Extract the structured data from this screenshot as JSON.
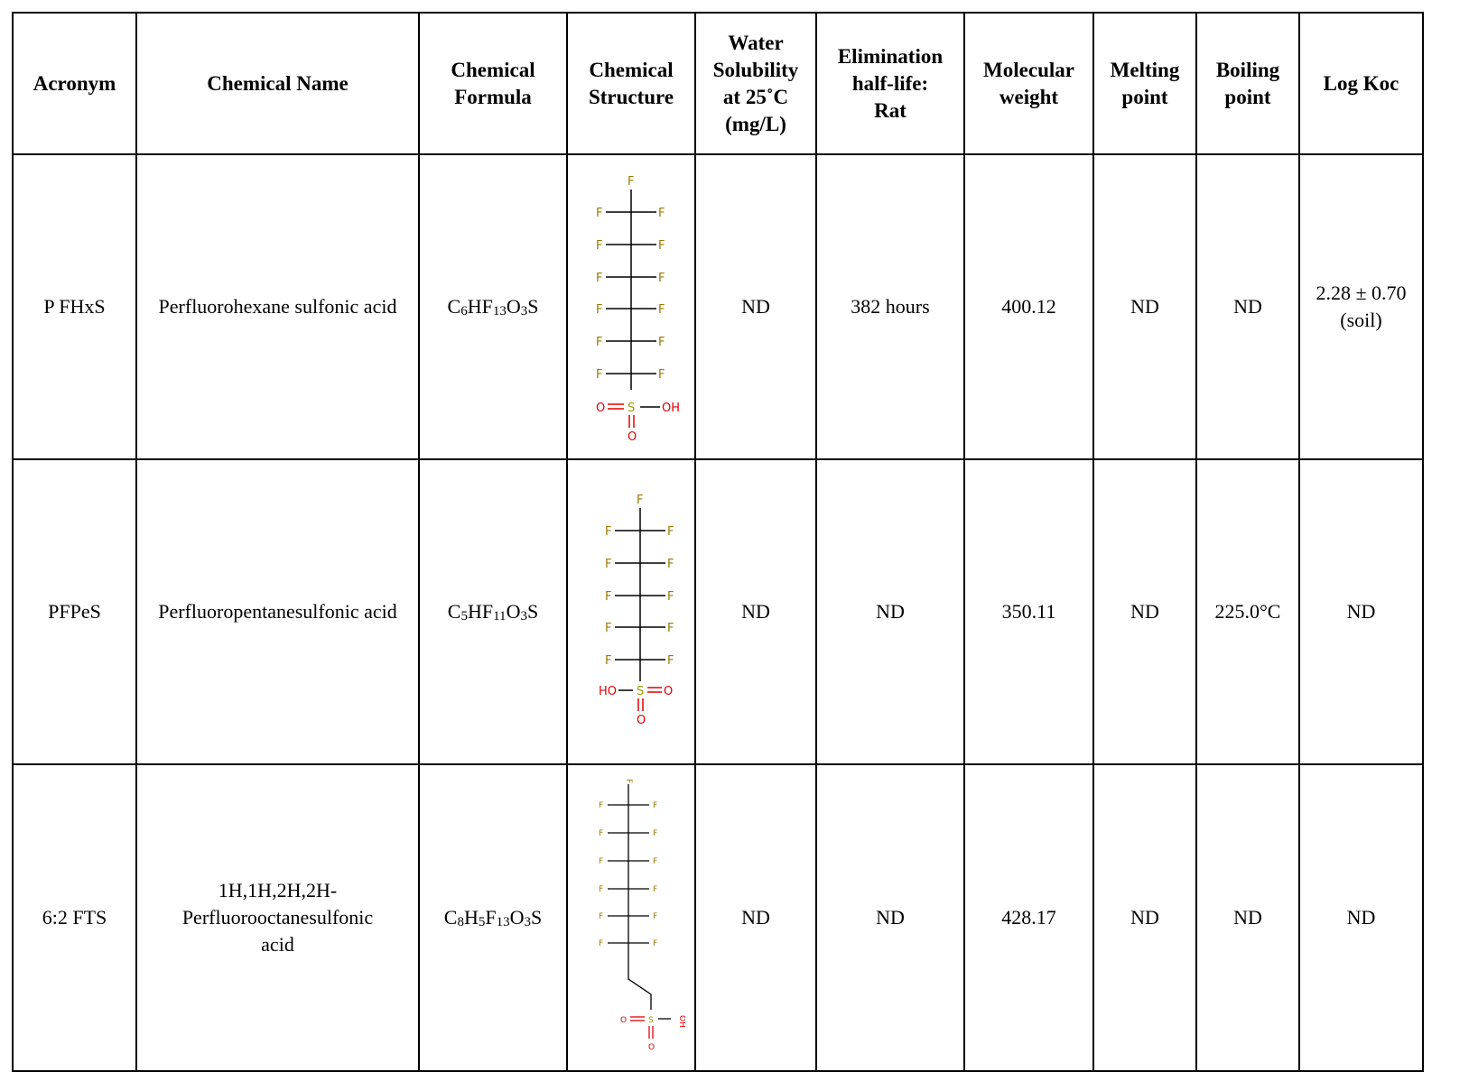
{
  "headers": {
    "acronym": "Acronym",
    "chemical_name": "Chemical Name",
    "formula_l1": "Chemical",
    "formula_l2": "Formula",
    "structure_l1": "Chemical",
    "structure_l2": "Structure",
    "water_l1": "Water",
    "water_l2": "Solubility",
    "water_l3": "at 25˚C",
    "water_l4": "(mg/L)",
    "elim_l1": "Elimination",
    "elim_l2": "half-life:",
    "elim_l3": "Rat",
    "mw_l1": "Molecular",
    "mw_l2": "weight",
    "melt_l1": "Melting",
    "melt_l2": "point",
    "boil_l1": "Boiling",
    "boil_l2": "point",
    "logkoc": "Log Koc"
  },
  "rows": [
    {
      "acronym": "P FHxS",
      "name": "Perfluorohexane sulfonic acid",
      "formula": {
        "p1": "C",
        "s1": "6",
        "p2": "HF",
        "s2": "13",
        "p3": "O",
        "s3": "3",
        "p4": "S"
      },
      "water": "ND",
      "elimination": "382 hours",
      "mw": "400.12",
      "melting": "ND",
      "boiling": "ND",
      "logkoc_l1": "2.28 ± 0.70",
      "logkoc_l2": "(soil)"
    },
    {
      "acronym": "PFPeS",
      "name": "Perfluoropentanesulfonic acid",
      "formula": {
        "p1": "C",
        "s1": "5",
        "p2": "HF",
        "s2": "11",
        "p3": "O",
        "s3": "3",
        "p4": "S"
      },
      "water": "ND",
      "elimination": "ND",
      "mw": "350.11",
      "melting": "ND",
      "boiling": "225.0°C",
      "logkoc": "ND"
    },
    {
      "acronym": "6:2 FTS",
      "name_l1": "1H,1H,2H,2H-",
      "name_l2": "Perfluorooctanesulfonic",
      "name_l3": "acid",
      "formula": {
        "p1": "C",
        "s1": "8",
        "p2": "H",
        "s2": "5",
        "p3": "F",
        "s3": "13",
        "p4": "O",
        "s4": "3",
        "p5": "S"
      },
      "water": "ND",
      "elimination": "ND",
      "mw": "428.17",
      "melting": "ND",
      "boiling": "ND",
      "logkoc": "ND"
    }
  ],
  "atoms": {
    "F": "F",
    "S": "S",
    "O": "O",
    "OH": "OH",
    "HO": "HO"
  },
  "colors": {
    "fluorine": "#9a7a00",
    "oxygen": "#e00000",
    "sulfur": "#9a9a00",
    "bond": "#000000"
  }
}
